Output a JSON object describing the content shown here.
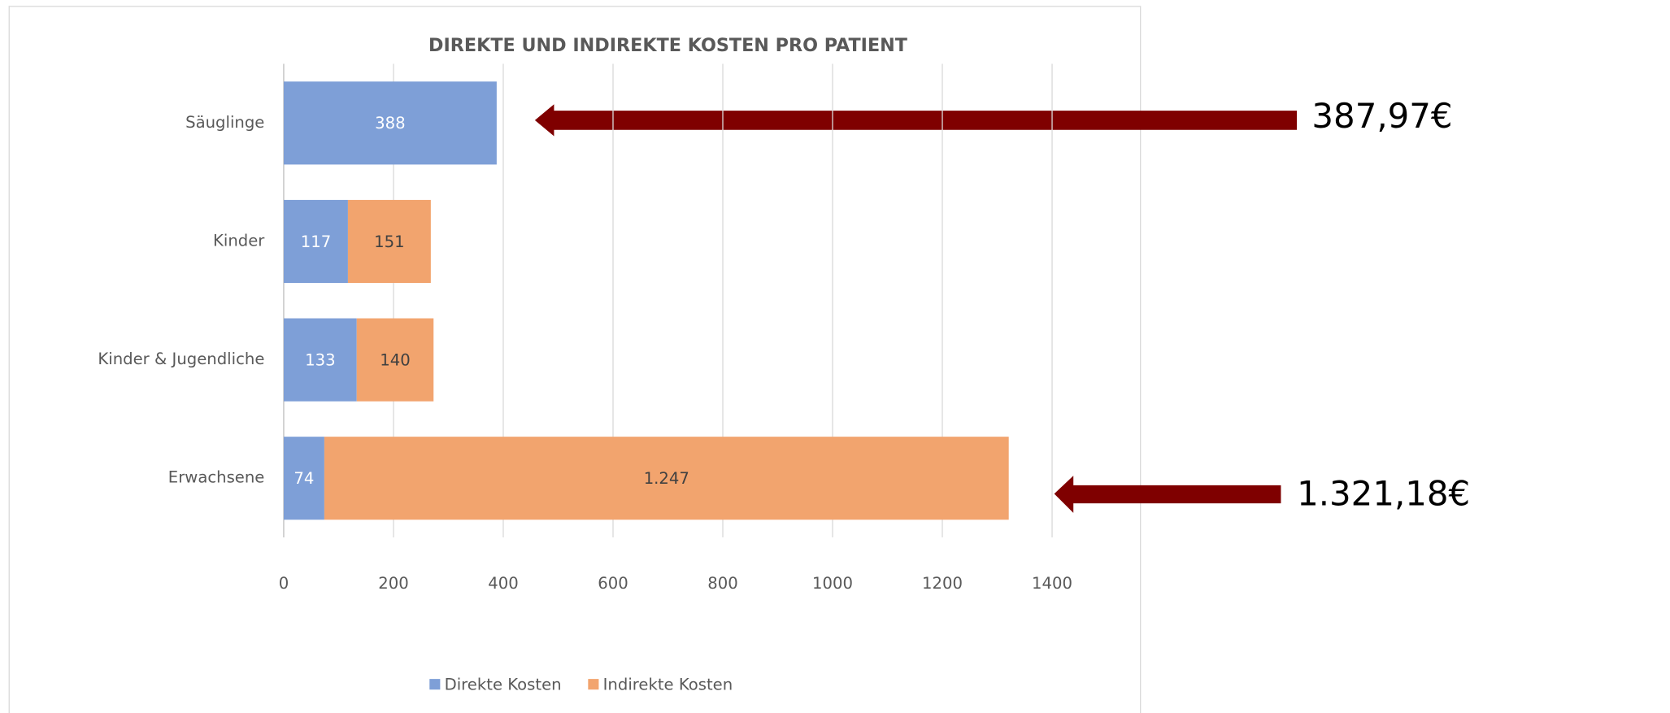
{
  "chart_data": {
    "type": "stacked-bar-horizontal",
    "title": "DIREKTE UND INDIREKTE KOSTEN PRO PATIENT",
    "categories": [
      "Säuglinge",
      "Kinder",
      "Kinder & Jugendliche",
      "Erwachsene"
    ],
    "series": [
      {
        "name": "Direkte Kosten",
        "color": "#7e9fd7",
        "values": [
          388,
          117,
          133,
          74
        ]
      },
      {
        "name": "Indirekte Kosten",
        "color": "#f2a46e",
        "values": [
          null,
          151,
          140,
          1247
        ],
        "value_labels": [
          null,
          "151",
          "140",
          "1.247"
        ]
      }
    ],
    "xlim": [
      0,
      1400
    ],
    "xticks": [
      0,
      200,
      400,
      600,
      800,
      1000,
      1200,
      1400
    ],
    "grid": true,
    "legend": "bottom",
    "annotations": [
      "387,97€",
      "1.321,18€"
    ]
  }
}
